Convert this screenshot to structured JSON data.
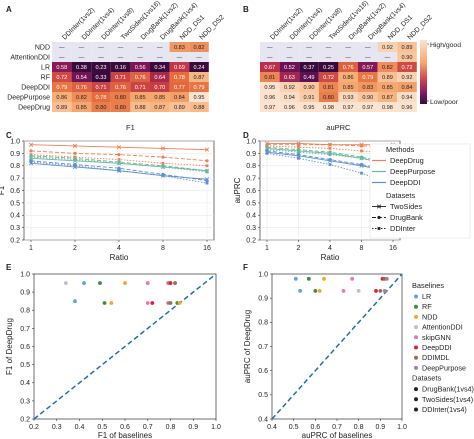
{
  "colors": {
    "good": "#fbe3cf",
    "poor": "#3a0a3c",
    "na": "#e6e6f2",
    "deepdrug": "#f07f52",
    "deeppurpose": "#67b7a0",
    "deepddi": "#5f8fd0",
    "diagonal": "#1f6fb0"
  },
  "heatmap_columns": [
    "DDInter(1vs2)",
    "DDInter(1vs4)",
    "DDInter(1vs8)",
    "TwoSides(1vs16)",
    "DrugBank(1vs2)",
    "DrugBank(1vs4)",
    "NDD_DS1",
    "NDD_DS2"
  ],
  "heatmap_rows": [
    "NDD",
    "AttentionDDI",
    "LR",
    "RF",
    "DeepDDI",
    "DeepPurpose",
    "DeepDrug"
  ],
  "colorbar": {
    "high": "High/good",
    "low": "Low/poor"
  },
  "chart_data": [
    {
      "panel": "A",
      "type": "heatmap",
      "xlabel": "F1",
      "values": [
        [
          "—",
          "—",
          "—",
          "—",
          "—",
          "—",
          "0.83",
          "0.82"
        ],
        [
          "—",
          "—",
          "—",
          "—",
          "—",
          "—",
          "—",
          "—"
        ],
        [
          "0.58",
          "0.38",
          "0.23",
          "0.16",
          "0.56",
          "0.34",
          "0.69",
          "0.24"
        ],
        [
          "0.72",
          "0.54",
          "0.33",
          "0.71",
          "0.76",
          "0.64",
          "0.78",
          "0.87"
        ],
        [
          "0.79",
          "0.76",
          "0.71",
          "0.76",
          "0.71",
          "0.70",
          "0.77",
          "0.79"
        ],
        [
          "0.86",
          "0.82",
          "0.78",
          "0.80",
          "0.85",
          "0.85",
          "0.84",
          "0.95"
        ],
        [
          "0.89",
          "0.85",
          "0.80",
          "0.80",
          "0.88",
          "0.87",
          "0.89",
          "0.88"
        ]
      ]
    },
    {
      "panel": "B",
      "type": "heatmap",
      "xlabel": "auPRC",
      "values": [
        [
          "—",
          "—",
          "—",
          "—",
          "—",
          "—",
          "0.92",
          "0.89"
        ],
        [
          "—",
          "—",
          "—",
          "—",
          "—",
          "—",
          "—",
          "0.90"
        ],
        [
          "0.67",
          "0.52",
          "0.37",
          "0.25",
          "0.76",
          "0.57",
          "0.82",
          "0.72"
        ],
        [
          "0.81",
          "0.63",
          "0.49",
          "0.72",
          "0.86",
          "0.79",
          "0.89",
          "0.92"
        ],
        [
          "0.95",
          "0.92",
          "0.90",
          "0.81",
          "0.85",
          "0.83",
          "0.85",
          "0.84"
        ],
        [
          "0.96",
          "0.94",
          "0.91",
          "0.80",
          "0.93",
          "0.90",
          "0.87",
          "0.94"
        ],
        [
          "0.97",
          "0.96",
          "0.95",
          "0.98",
          "0.97",
          "0.97",
          "0.98",
          "0.96"
        ]
      ]
    },
    {
      "panel": "C",
      "type": "line",
      "xlabel": "Ratio",
      "ylabel": "F1",
      "x": [
        "1",
        "2",
        "4",
        "8",
        "16"
      ],
      "ylim": [
        0.2,
        1.0
      ],
      "yticks": [
        "0.2",
        "0.3",
        "0.4",
        "0.5",
        "0.6",
        "0.7",
        "0.8",
        "0.9",
        "1.0"
      ],
      "series": [
        {
          "method": "DeepDrug",
          "dataset": "DrugBank",
          "values": [
            0.92,
            0.9,
            0.89,
            0.87,
            0.84
          ]
        },
        {
          "method": "DeepDrug",
          "dataset": "TwoSides",
          "values": [
            0.97,
            0.96,
            0.95,
            0.94,
            0.93
          ]
        },
        {
          "method": "DeepDrug",
          "dataset": "DDInter",
          "values": [
            0.89,
            0.87,
            0.85,
            0.82,
            0.8
          ]
        },
        {
          "method": "DeepPurpose",
          "dataset": "DrugBank",
          "values": [
            0.88,
            0.86,
            0.83,
            0.8,
            0.76
          ]
        },
        {
          "method": "DeepPurpose",
          "dataset": "TwoSides",
          "values": [
            0.86,
            0.84,
            0.82,
            0.79,
            0.76
          ]
        },
        {
          "method": "DeepPurpose",
          "dataset": "DDInter",
          "values": [
            0.87,
            0.85,
            0.82,
            0.79,
            0.75
          ]
        },
        {
          "method": "DeepDDI",
          "dataset": "DrugBank",
          "values": [
            0.84,
            0.81,
            0.78,
            0.73,
            0.68
          ]
        },
        {
          "method": "DeepDDI",
          "dataset": "TwoSides",
          "values": [
            0.82,
            0.79,
            0.76,
            0.72,
            0.69
          ]
        },
        {
          "method": "DeepDDI",
          "dataset": "DDInter",
          "values": [
            0.83,
            0.8,
            0.76,
            0.72,
            0.66
          ]
        }
      ]
    },
    {
      "panel": "D",
      "type": "line",
      "xlabel": "Ratio",
      "ylabel": "auPRC",
      "x": [
        "1",
        "2",
        "4",
        "8",
        "16"
      ],
      "ylim": [
        0.2,
        1.0
      ],
      "yticks": [
        "0.2",
        "0.3",
        "0.4",
        "0.5",
        "0.6",
        "0.7",
        "0.8",
        "0.9",
        "1.0"
      ],
      "legend": {
        "methods_title": "Methods",
        "methods": [
          "DeepDrug",
          "DeepPurpose",
          "DeepDDI"
        ],
        "datasets_title": "Datasets",
        "datasets": [
          "TwoSides",
          "DrugBank",
          "DDInter"
        ]
      },
      "series": [
        {
          "method": "DeepDrug",
          "dataset": "DrugBank",
          "values": [
            0.97,
            0.97,
            0.97,
            0.96,
            0.96
          ]
        },
        {
          "method": "DeepDrug",
          "dataset": "TwoSides",
          "values": [
            0.98,
            0.98,
            0.97,
            0.97,
            0.97
          ]
        },
        {
          "method": "DeepDrug",
          "dataset": "DDInter",
          "values": [
            0.96,
            0.95,
            0.94,
            0.92,
            0.9
          ]
        },
        {
          "method": "DeepPurpose",
          "dataset": "DrugBank",
          "values": [
            0.95,
            0.93,
            0.91,
            0.87,
            0.82
          ]
        },
        {
          "method": "DeepPurpose",
          "dataset": "TwoSides",
          "values": [
            0.94,
            0.92,
            0.9,
            0.86,
            0.81
          ]
        },
        {
          "method": "DeepPurpose",
          "dataset": "DDInter",
          "values": [
            0.93,
            0.91,
            0.89,
            0.86,
            0.8
          ]
        },
        {
          "method": "DeepDDI",
          "dataset": "DrugBank",
          "values": [
            0.92,
            0.89,
            0.85,
            0.81,
            0.76
          ]
        },
        {
          "method": "DeepDDI",
          "dataset": "TwoSides",
          "values": [
            0.91,
            0.88,
            0.84,
            0.8,
            0.75
          ]
        },
        {
          "method": "DeepDDI",
          "dataset": "DDInter",
          "values": [
            0.9,
            0.86,
            0.81,
            0.74,
            0.65
          ]
        }
      ]
    },
    {
      "panel": "E",
      "type": "scatter",
      "xlabel": "F1 of baselines",
      "ylabel": "F1 of DeepDrug",
      "xlim": [
        0.2,
        1.0
      ],
      "ylim": [
        0.2,
        1.0
      ],
      "ticks": [
        "0.2",
        "0.3",
        "0.4",
        "0.5",
        "0.6",
        "0.7",
        "0.8",
        "0.9",
        "1.0"
      ],
      "points": [
        {
          "x": 0.34,
          "y": 0.95,
          "method": "AttentionDDI",
          "color": "#c9b6e0"
        },
        {
          "x": 0.42,
          "y": 0.95,
          "method": "LR",
          "color": "#5fa4d6"
        },
        {
          "x": 0.49,
          "y": 0.95,
          "method": "RF",
          "color": "#3d8d3d"
        },
        {
          "x": 0.6,
          "y": 0.95,
          "method": "NDD",
          "color": "#f5a623"
        },
        {
          "x": 0.7,
          "y": 0.95,
          "method": "skipGNN",
          "color": "#e377c2"
        },
        {
          "x": 0.79,
          "y": 0.95,
          "method": "DeepPurpose",
          "color": "#b07aa1"
        },
        {
          "x": 0.8,
          "y": 0.95,
          "method": "DeepDDI",
          "color": "#d62728"
        },
        {
          "x": 0.82,
          "y": 0.95,
          "method": "DDIMDL",
          "color": "#9f6a50"
        },
        {
          "x": 0.38,
          "y": 0.85,
          "method": "LR",
          "color": "#5fa4d6"
        },
        {
          "x": 0.51,
          "y": 0.84,
          "method": "RF",
          "color": "#3d8d3d"
        },
        {
          "x": 0.54,
          "y": 0.84,
          "method": "NDD",
          "color": "#f5a623"
        },
        {
          "x": 0.7,
          "y": 0.84,
          "method": "skipGNN",
          "color": "#e377c2"
        },
        {
          "x": 0.72,
          "y": 0.84,
          "method": "DeepDDI",
          "color": "#d62728"
        },
        {
          "x": 0.79,
          "y": 0.84,
          "method": "DeepPurpose",
          "color": "#b07aa1"
        },
        {
          "x": 0.8,
          "y": 0.84,
          "method": "DDIMDL",
          "color": "#9f6a50"
        },
        {
          "x": 0.83,
          "y": 0.84,
          "method": "RF",
          "color": "#3d8d3d"
        },
        {
          "x": 0.84,
          "y": 0.84,
          "method": "NDD",
          "color": "#f5a623"
        }
      ]
    },
    {
      "panel": "F",
      "type": "scatter",
      "xlabel": "auPRC of baselines",
      "ylabel": "auPRC of DeepDrug",
      "xlim": [
        0.4,
        1.0
      ],
      "ylim": [
        0.4,
        1.0
      ],
      "ticks": [
        "0.4",
        "0.5",
        "0.6",
        "0.7",
        "0.8",
        "0.9",
        "1.0"
      ],
      "legend": {
        "baselines_title": "Baselines",
        "baselines": [
          {
            "name": "LR",
            "color": "#5fa4d6"
          },
          {
            "name": "RF",
            "color": "#3d8d3d"
          },
          {
            "name": "NDD",
            "color": "#f5a623"
          },
          {
            "name": "AttentionDDI",
            "color": "#c9b6e0"
          },
          {
            "name": "skipGNN",
            "color": "#e377c2"
          },
          {
            "name": "DeepDDI",
            "color": "#d62728"
          },
          {
            "name": "DDIMDL",
            "color": "#9f6a50"
          },
          {
            "name": "DeepPurpose",
            "color": "#b07aa1"
          }
        ],
        "datasets_title": "Datasets",
        "datasets": [
          "DrugBank(1vs4)",
          "TwoSides(1vs4)",
          "DDInter(1vs4)"
        ]
      },
      "points": [
        {
          "x": 0.51,
          "y": 0.98,
          "method": "LR",
          "color": "#5fa4d6"
        },
        {
          "x": 0.57,
          "y": 0.98,
          "method": "RF",
          "color": "#3d8d3d"
        },
        {
          "x": 0.64,
          "y": 0.98,
          "method": "NDD",
          "color": "#f5a623"
        },
        {
          "x": 0.77,
          "y": 0.98,
          "method": "skipGNN",
          "color": "#e377c2"
        },
        {
          "x": 0.91,
          "y": 0.98,
          "method": "DeepDDI",
          "color": "#d62728"
        },
        {
          "x": 0.92,
          "y": 0.98,
          "method": "DDIMDL",
          "color": "#9f6a50"
        },
        {
          "x": 0.93,
          "y": 0.98,
          "method": "DeepPurpose",
          "color": "#b07aa1"
        },
        {
          "x": 0.53,
          "y": 0.93,
          "method": "LR",
          "color": "#5fa4d6"
        },
        {
          "x": 0.6,
          "y": 0.93,
          "method": "RF",
          "color": "#3d8d3d"
        },
        {
          "x": 0.62,
          "y": 0.93,
          "method": "NDD",
          "color": "#f5a623"
        },
        {
          "x": 0.73,
          "y": 0.93,
          "method": "skipGNN",
          "color": "#e377c2"
        },
        {
          "x": 0.8,
          "y": 0.93,
          "method": "AttentionDDI",
          "color": "#c9b6e0"
        },
        {
          "x": 0.88,
          "y": 0.93,
          "method": "DeepDDI",
          "color": "#d62728"
        },
        {
          "x": 0.9,
          "y": 0.93,
          "method": "DDIMDL",
          "color": "#9f6a50"
        },
        {
          "x": 0.92,
          "y": 0.93,
          "method": "DeepPurpose",
          "color": "#b07aa1"
        }
      ]
    }
  ]
}
